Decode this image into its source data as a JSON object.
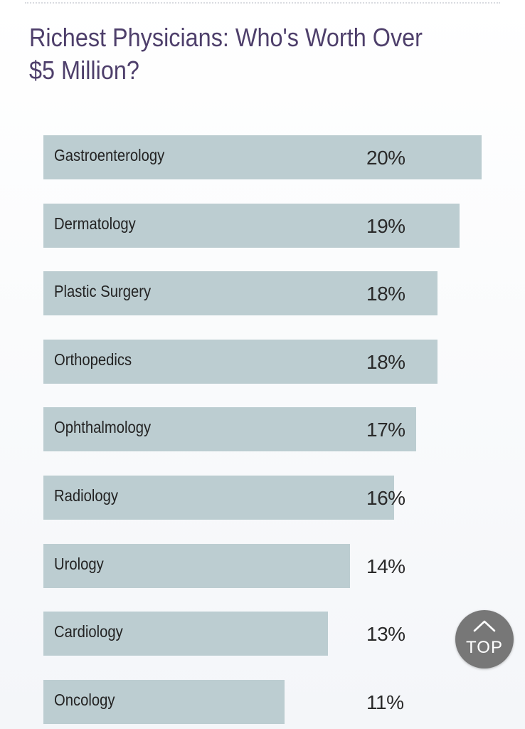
{
  "chart_data": {
    "type": "bar",
    "orientation": "horizontal",
    "title": "Richest Physicians: Who's Worth Over $5 Million?",
    "categories": [
      "Gastroenterology",
      "Dermatology",
      "Plastic Surgery",
      "Orthopedics",
      "Ophthalmology",
      "Radiology",
      "Urology",
      "Cardiology",
      "Oncology"
    ],
    "values": [
      20,
      19,
      18,
      18,
      17,
      16,
      14,
      13,
      11
    ],
    "value_labels": [
      "20%",
      "19%",
      "18%",
      "18%",
      "17%",
      "16%",
      "14%",
      "13%",
      "11%"
    ],
    "unit": "%",
    "xlim": [
      0,
      20
    ],
    "grid": false,
    "bar_color": "#bccdd1"
  },
  "colors": {
    "title": "#4e3f6b",
    "bar": "#bccdd1",
    "top_button": "#777777"
  },
  "top_button": {
    "label": "TOP",
    "icon": "chevron-up-icon"
  }
}
